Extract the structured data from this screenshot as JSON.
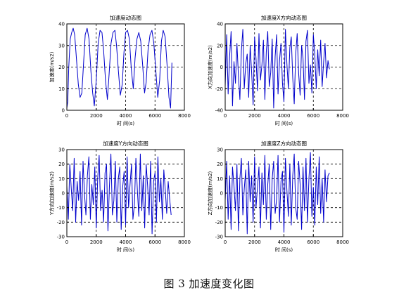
{
  "caption": "图 3  加速度变化图",
  "colors": {
    "line": "#0000cc",
    "axes": "#000000",
    "grid": "#000000"
  },
  "chart_data": [
    {
      "type": "line",
      "title": "加速度动态图",
      "xlabel": "时 间(s)",
      "ylabel": "加速度(m/s2)",
      "xlim": [
        0,
        8000
      ],
      "ylim": [
        0,
        40
      ],
      "xticks": [
        0,
        2000,
        4000,
        6000,
        8000
      ],
      "yticks": [
        0,
        10,
        20,
        30,
        40
      ],
      "grid": true,
      "series": [
        {
          "x": [
            0,
            60,
            130,
            230,
            330,
            430,
            530,
            650,
            780,
            900,
            1020,
            1140,
            1250,
            1380,
            1510,
            1640,
            1760,
            1870,
            2000,
            2130,
            2260,
            2390,
            2500,
            2630,
            2760,
            2880,
            3010,
            3140,
            3270,
            3380,
            3510,
            3640,
            3770,
            3890,
            4000,
            4130,
            4260,
            4390,
            4520,
            4640,
            4770,
            4900,
            5030,
            5160,
            5290,
            5400,
            5530,
            5660,
            5790,
            5920,
            6060,
            6190,
            6320,
            6440,
            6560,
            6690,
            6820,
            6950,
            7060,
            7150
          ],
          "values": [
            1,
            4,
            20,
            33,
            36,
            38,
            35,
            24,
            12,
            6,
            8,
            22,
            35,
            38,
            33,
            18,
            8,
            2,
            14,
            31,
            37,
            36,
            28,
            14,
            5,
            17,
            31,
            36,
            37,
            30,
            18,
            7,
            12,
            27,
            36,
            37,
            33,
            19,
            10,
            24,
            33,
            36,
            32,
            21,
            8,
            13,
            28,
            35,
            37,
            31,
            18,
            6,
            14,
            32,
            37,
            34,
            21,
            6,
            1,
            22
          ]
        }
      ]
    },
    {
      "type": "line",
      "title": "加速度X方向动态图",
      "xlabel": "时 间(s)",
      "ylabel": "X方向加速度(m/s2)",
      "xlim": [
        0,
        8000
      ],
      "ylim": [
        -40,
        40
      ],
      "xticks": [
        0,
        2000,
        4000,
        6000,
        8000
      ],
      "yticks": [
        -40,
        -20,
        0,
        20,
        40
      ],
      "grid": true,
      "series": [
        {
          "x": [
            0,
            100,
            200,
            300,
            400,
            500,
            600,
            700,
            800,
            900,
            1000,
            1100,
            1200,
            1300,
            1400,
            1500,
            1600,
            1700,
            1800,
            1900,
            2000,
            2100,
            2200,
            2300,
            2400,
            2500,
            2600,
            2700,
            2800,
            2900,
            3000,
            3100,
            3200,
            3300,
            3400,
            3500,
            3600,
            3700,
            3800,
            3900,
            4000,
            4100,
            4200,
            4300,
            4400,
            4500,
            4600,
            4700,
            4800,
            4900,
            5000,
            5100,
            5200,
            5300,
            5400,
            5500,
            5600,
            5700,
            5800,
            5900,
            6000,
            6100,
            6200,
            6300,
            6400,
            6500,
            6600,
            6700,
            6800,
            6900,
            7000,
            7100
          ],
          "values": [
            -18,
            30,
            -25,
            10,
            33,
            -36,
            5,
            -15,
            22,
            -8,
            -30,
            15,
            35,
            -20,
            3,
            12,
            -28,
            20,
            -5,
            -35,
            28,
            8,
            -22,
            31,
            -12,
            2,
            25,
            -30,
            14,
            33,
            -18,
            -5,
            26,
            -38,
            10,
            30,
            -25,
            6,
            22,
            -15,
            -32,
            35,
            3,
            -20,
            18,
            28,
            -10,
            -34,
            12,
            31,
            -6,
            -26,
            20,
            8,
            -30,
            24,
            34,
            -15,
            2,
            -24,
            30,
            12,
            -20,
            16,
            -8,
            25,
            -18,
            5,
            22,
            -10,
            6,
            -2
          ]
        }
      ]
    },
    {
      "type": "line",
      "title": "加速度Y方向动态图",
      "xlabel": "时 间(s)",
      "ylabel": "Y方向加速度(m/s2)",
      "xlim": [
        0,
        8000
      ],
      "ylim": [
        -30,
        30
      ],
      "xticks": [
        0,
        2000,
        4000,
        6000,
        8000
      ],
      "yticks": [
        -30,
        -20,
        -10,
        0,
        10,
        20,
        30
      ],
      "grid": true,
      "series": [
        {
          "x": [
            0,
            100,
            200,
            300,
            400,
            500,
            600,
            700,
            800,
            900,
            1000,
            1100,
            1200,
            1300,
            1400,
            1500,
            1600,
            1700,
            1800,
            1900,
            2000,
            2100,
            2200,
            2300,
            2400,
            2500,
            2600,
            2700,
            2800,
            2900,
            3000,
            3100,
            3200,
            3300,
            3400,
            3500,
            3600,
            3700,
            3800,
            3900,
            4000,
            4100,
            4200,
            4300,
            4400,
            4500,
            4600,
            4700,
            4800,
            4900,
            5000,
            5100,
            5200,
            5300,
            5400,
            5500,
            5600,
            5700,
            5800,
            5900,
            6000,
            6100,
            6200,
            6300,
            6400,
            6500,
            6600,
            6700,
            6800,
            6900,
            7000,
            7100
          ],
          "values": [
            5,
            -18,
            20,
            3,
            -12,
            24,
            -20,
            8,
            -5,
            15,
            -22,
            22,
            0,
            -15,
            12,
            25,
            -18,
            6,
            -8,
            18,
            -24,
            10,
            26,
            -12,
            2,
            -20,
            14,
            20,
            -26,
            5,
            27,
            -15,
            -5,
            22,
            -20,
            10,
            18,
            -25,
            4,
            15,
            -22,
            25,
            -10,
            6,
            20,
            -18,
            -8,
            24,
            2,
            -16,
            27,
            -12,
            12,
            -24,
            20,
            5,
            -15,
            22,
            -28,
            8,
            14,
            -20,
            25,
            -6,
            10,
            -18,
            16,
            2,
            -14,
            8,
            -4,
            -15
          ]
        }
      ]
    },
    {
      "type": "line",
      "title": "加速度Z方向动态图",
      "xlabel": "时 间(s)",
      "ylabel": "Z方向加速度(m/s2)",
      "xlim": [
        0,
        8000
      ],
      "ylim": [
        -30,
        30
      ],
      "xticks": [
        0,
        2000,
        4000,
        6000,
        8000
      ],
      "yticks": [
        -30,
        -20,
        -10,
        0,
        10,
        20,
        30
      ],
      "grid": true,
      "series": [
        {
          "x": [
            0,
            100,
            200,
            300,
            400,
            500,
            600,
            700,
            800,
            900,
            1000,
            1100,
            1200,
            1300,
            1400,
            1500,
            1600,
            1700,
            1800,
            1900,
            2000,
            2100,
            2200,
            2300,
            2400,
            2500,
            2600,
            2700,
            2800,
            2900,
            3000,
            3100,
            3200,
            3300,
            3400,
            3500,
            3600,
            3700,
            3800,
            3900,
            4000,
            4100,
            4200,
            4300,
            4400,
            4500,
            4600,
            4700,
            4800,
            4900,
            5000,
            5100,
            5200,
            5300,
            5400,
            5500,
            5600,
            5700,
            5800,
            5900,
            6000,
            6100,
            6200,
            6300,
            6400,
            6500,
            6600,
            6700,
            6800,
            6900,
            7000,
            7100
          ],
          "values": [
            -5,
            22,
            -18,
            12,
            -25,
            18,
            5,
            -12,
            20,
            -26,
            10,
            24,
            -15,
            3,
            16,
            -28,
            22,
            -6,
            12,
            -20,
            25,
            -10,
            4,
            18,
            -24,
            14,
            -8,
            26,
            -18,
            6,
            20,
            -25,
            10,
            22,
            -14,
            -4,
            26,
            -20,
            8,
            15,
            -27,
            24,
            2,
            -16,
            20,
            -22,
            12,
            27,
            -10,
            -18,
            22,
            6,
            -25,
            18,
            -12,
            24,
            -20,
            10,
            28,
            -16,
            4,
            -22,
            18,
            -8,
            25,
            -14,
            10,
            -20,
            16,
            -6,
            12,
            14
          ]
        }
      ]
    }
  ]
}
